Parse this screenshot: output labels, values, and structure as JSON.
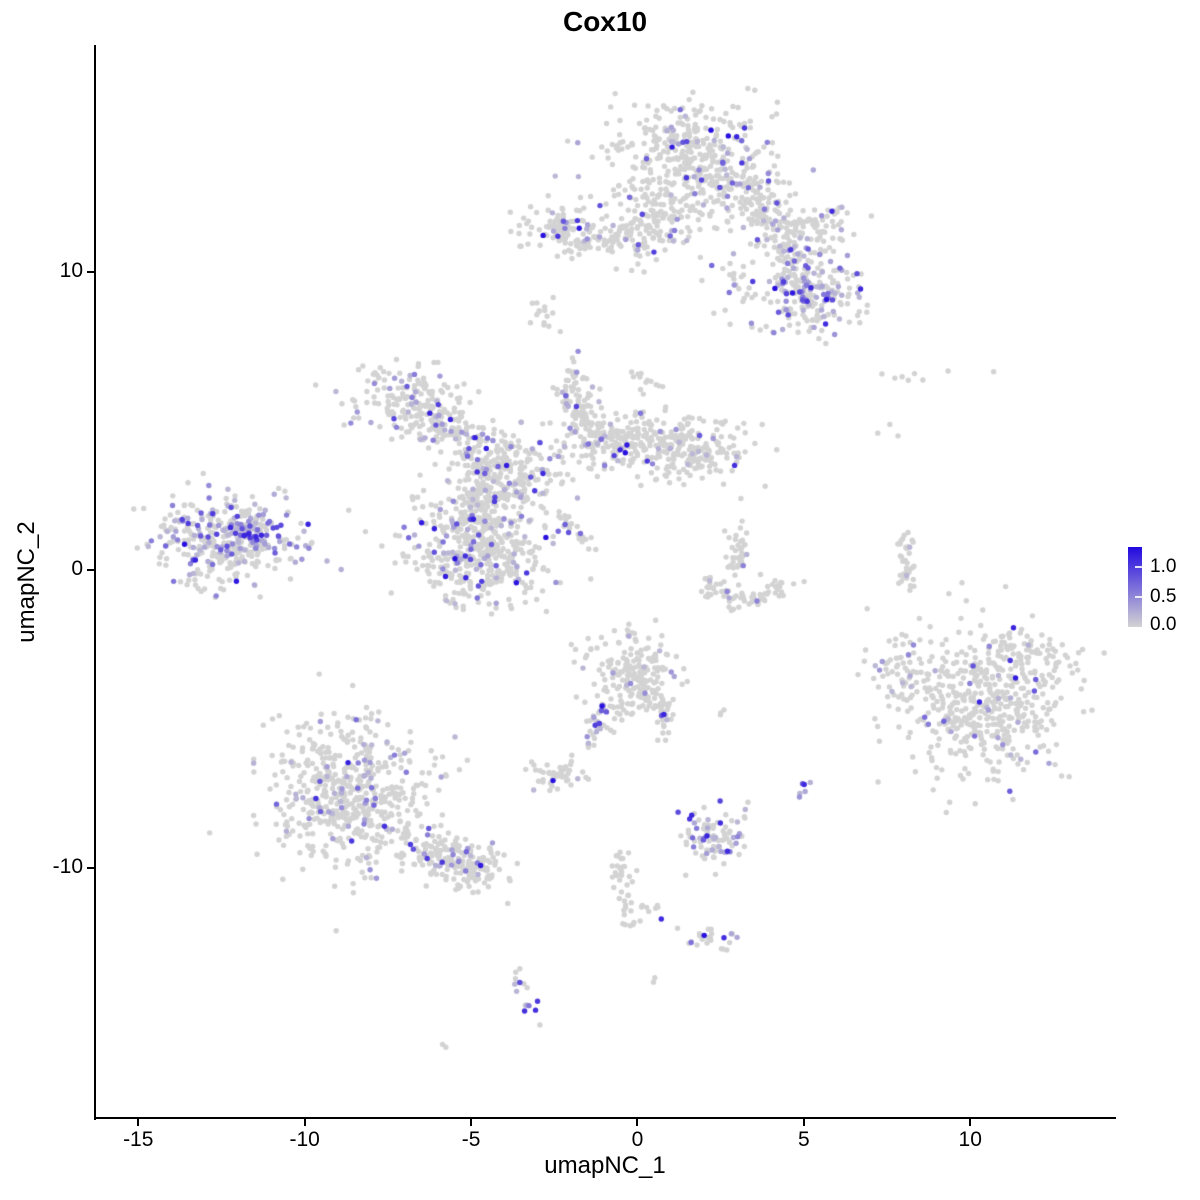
{
  "title": "Cox10",
  "chart_data": {
    "type": "scatter",
    "subtype": "umap-feature-plot",
    "title": "Cox10",
    "xlabel": "umapNC_1",
    "ylabel": "umapNC_2",
    "xlim": [
      -16.3,
      14.35
    ],
    "ylim": [
      -18.4,
      17.6
    ],
    "x_ticks": [
      -15,
      -10,
      -5,
      0,
      5,
      10
    ],
    "x_tick_labels": [
      "-15",
      "-10",
      "-5",
      "0",
      "5",
      "10"
    ],
    "y_ticks": [
      10,
      0,
      -10
    ],
    "y_tick_labels": [
      "10",
      "0",
      "-10"
    ],
    "grid": false,
    "legend": {
      "position": "right",
      "max": 1.33,
      "tick_values": [
        1.0,
        0.5,
        0.0
      ],
      "tick_labels": [
        "1.0",
        "0.5",
        "0.0"
      ]
    },
    "colors": {
      "expression_low": "#d3d3d3",
      "expression_high": "#2209e0"
    },
    "point_radius": 2.7,
    "clusters_note": "blob:[cx,cy,sx,sy,n,fracExpressing]  seg:[x1,y1,x2,y2,width,n,frac]  arc:[x1,y1,qx,qy,x2,y2,width,n,frac]",
    "clusters": [
      [
        "blob",
        1.6,
        13.8,
        1.15,
        0.95,
        380,
        0.1
      ],
      [
        "blob",
        0.45,
        11.75,
        0.75,
        0.65,
        140,
        0.08
      ],
      [
        "seg",
        2.9,
        13.0,
        4.2,
        11.5,
        0.45,
        150,
        0.12
      ],
      [
        "blob",
        5.4,
        11.5,
        0.55,
        0.45,
        80,
        0.15
      ],
      [
        "seg",
        4.4,
        11.0,
        4.9,
        10.1,
        0.3,
        50,
        0.2
      ],
      [
        "blob",
        5.15,
        9.25,
        0.8,
        0.62,
        210,
        0.3
      ],
      [
        "blob",
        -2.3,
        11.4,
        0.6,
        0.5,
        110,
        0.12
      ],
      [
        "seg",
        -1.5,
        11.15,
        0.3,
        10.95,
        0.18,
        45,
        0.06
      ],
      [
        "blob",
        -2.75,
        8.75,
        0.22,
        0.38,
        15,
        0.0
      ],
      [
        "blob",
        0.25,
        6.35,
        0.28,
        0.2,
        12,
        0.0
      ],
      [
        "blob",
        3.0,
        9.6,
        0.45,
        0.85,
        26,
        0.08
      ],
      [
        "blob",
        -6.9,
        5.75,
        0.8,
        0.55,
        150,
        0.13
      ],
      [
        "seg",
        -6.3,
        5.2,
        -4.3,
        3.7,
        0.45,
        140,
        0.15
      ],
      [
        "blob",
        -3.9,
        3.3,
        0.85,
        0.7,
        240,
        0.16
      ],
      [
        "blob",
        -1.9,
        6.3,
        0.3,
        0.5,
        40,
        0.1
      ],
      [
        "seg",
        -1.9,
        5.6,
        -1.1,
        4.2,
        0.3,
        60,
        0.1
      ],
      [
        "seg",
        -1.6,
        4.5,
        0.4,
        4.25,
        0.5,
        160,
        0.09
      ],
      [
        "blob",
        1.55,
        4.05,
        0.85,
        0.55,
        210,
        0.08
      ],
      [
        "seg",
        -4.6,
        2.7,
        -4.9,
        1.6,
        0.4,
        90,
        0.12
      ],
      [
        "blob",
        -4.85,
        0.55,
        1.0,
        0.9,
        430,
        0.13
      ],
      [
        "seg",
        -2.45,
        1.95,
        -1.25,
        0.65,
        0.1,
        26,
        0.3
      ],
      [
        "blob",
        -12.4,
        0.95,
        1.05,
        0.7,
        360,
        0.28
      ],
      [
        "blob",
        -11.7,
        1.35,
        0.45,
        0.35,
        60,
        0.55
      ],
      [
        "blob",
        -12.7,
        -0.6,
        0.5,
        0.28,
        8,
        0.1
      ],
      [
        "blob",
        3.05,
        0.55,
        0.3,
        0.5,
        40,
        0.1
      ],
      [
        "arc",
        2.0,
        -0.3,
        3.2,
        -1.7,
        4.5,
        -0.4,
        0.18,
        72,
        0.06
      ],
      [
        "seg",
        8.05,
        1.2,
        8.15,
        -0.7,
        0.12,
        40,
        0.05
      ],
      [
        "blob",
        8.6,
        6.45,
        1.0,
        0.3,
        8,
        0.0
      ],
      [
        "blob",
        7.6,
        4.65,
        0.16,
        0.16,
        3,
        0.0
      ],
      [
        "blob",
        10.3,
        -4.5,
        1.25,
        1.25,
        500,
        0.07
      ],
      [
        "blob",
        7.95,
        -3.3,
        0.45,
        0.6,
        55,
        0.07
      ],
      [
        "blob",
        11.85,
        -2.7,
        0.6,
        0.4,
        50,
        0.1
      ],
      [
        "blob",
        -8.7,
        -7.6,
        1.2,
        1.25,
        560,
        0.14
      ],
      [
        "seg",
        -6.8,
        -9.3,
        -4.2,
        -10.2,
        0.4,
        150,
        0.12
      ],
      [
        "blob",
        -5.3,
        -9.9,
        0.5,
        0.4,
        60,
        0.18
      ],
      [
        "blob",
        -0.1,
        -3.6,
        0.7,
        0.8,
        210,
        0.06
      ],
      [
        "seg",
        -1.0,
        -4.7,
        -1.55,
        -6.0,
        0.15,
        30,
        0.35
      ],
      [
        "seg",
        0.5,
        -4.5,
        0.95,
        -5.3,
        0.15,
        20,
        0.1
      ],
      [
        "blob",
        2.75,
        -4.85,
        0.2,
        0.12,
        3,
        0.0
      ],
      [
        "blob",
        -2.35,
        -6.9,
        0.48,
        0.28,
        45,
        0.15
      ],
      [
        "blob",
        5.0,
        -7.3,
        0.17,
        0.25,
        6,
        0.75
      ],
      [
        "blob",
        2.45,
        -8.95,
        0.52,
        0.45,
        95,
        0.33
      ],
      [
        "seg",
        -0.55,
        -9.6,
        -0.25,
        -11.9,
        0.18,
        40,
        0.03
      ],
      [
        "seg",
        0.1,
        -11.25,
        1.3,
        -11.9,
        0.12,
        9,
        0.12
      ],
      [
        "blob",
        2.3,
        -12.45,
        0.33,
        0.25,
        24,
        0.2
      ],
      [
        "blob",
        0.55,
        -13.8,
        0.12,
        0.12,
        2,
        0.0
      ],
      [
        "arc",
        -3.55,
        -13.3,
        -3.65,
        -14.6,
        -2.95,
        -15.15,
        0.12,
        16,
        0.3
      ],
      [
        "blob",
        -5.95,
        -15.95,
        0.12,
        0.1,
        2,
        0.5
      ]
    ],
    "highlights": [
      [
        2.73,
        14.55,
        1.3
      ],
      [
        -1.75,
        11.45,
        1.22
      ],
      [
        11.3,
        -1.95,
        1.15
      ],
      [
        -11.3,
        1.15,
        1.15
      ],
      [
        2.6,
        -12.35,
        1.1
      ],
      [
        5.1,
        9.0,
        1.05
      ],
      [
        -13.5,
        1.55,
        1.0
      ]
    ]
  }
}
